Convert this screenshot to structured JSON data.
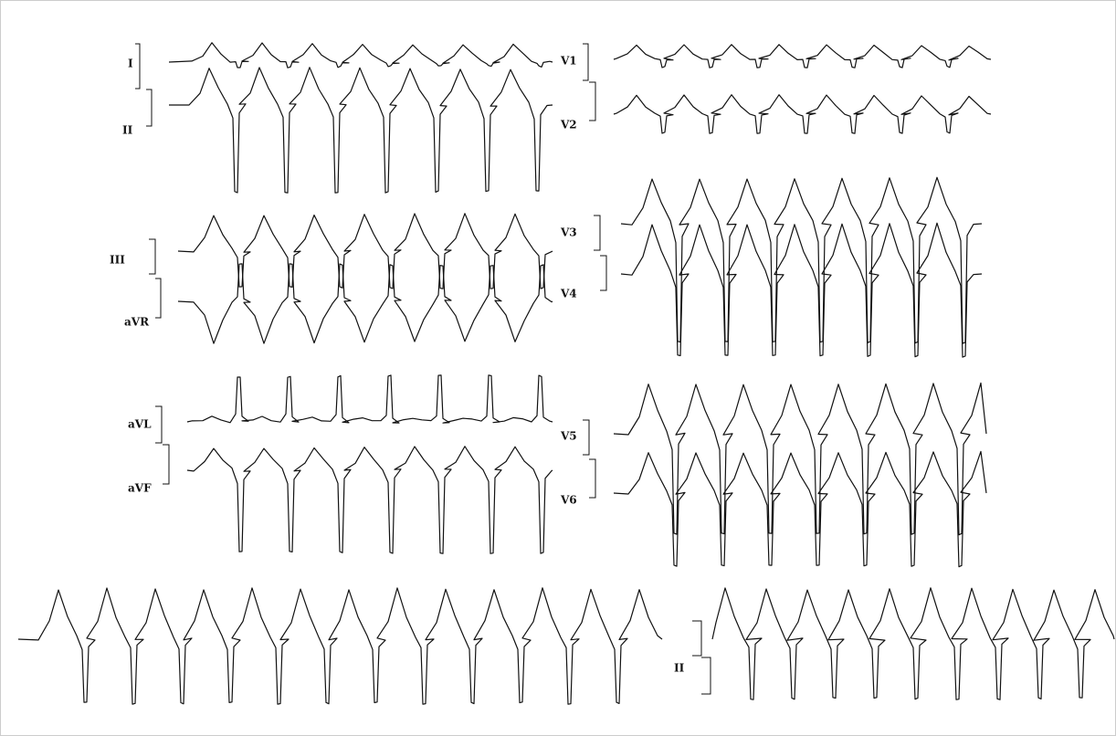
{
  "leads": [
    {
      "label": "I"
    },
    {
      "label": "II"
    },
    {
      "label": "III"
    },
    {
      "label": "aVR"
    },
    {
      "label": "aVL"
    },
    {
      "label": "aVF"
    },
    {
      "label": "V1"
    },
    {
      "label": "V2"
    },
    {
      "label": "V3"
    },
    {
      "label": "V4"
    },
    {
      "label": "V5"
    },
    {
      "label": "V6"
    },
    {
      "label": "II"
    }
  ]
}
